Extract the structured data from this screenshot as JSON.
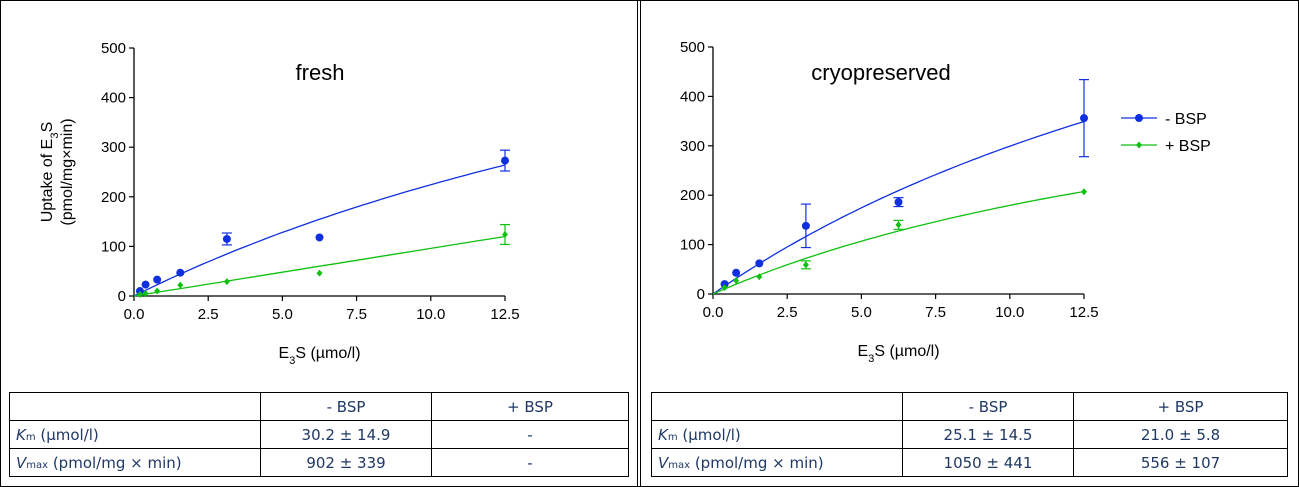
{
  "colors": {
    "minus_bsp": "#1030e0",
    "plus_bsp": "#10c010",
    "table_text": "#1f3864"
  },
  "chart_data": [
    {
      "type": "scatter",
      "title": "fresh",
      "xlabel": "E3S (µmo/l)",
      "ylabel": "Uptake of E3S (pmol/mg×min)",
      "xlim": [
        0,
        12.5
      ],
      "ylim": [
        0,
        500
      ],
      "xticks": [
        "0.0",
        "2.5",
        "5.0",
        "7.5",
        "10.0",
        "12.5"
      ],
      "yticks": [
        "0",
        "100",
        "200",
        "300",
        "400",
        "500"
      ],
      "legend": "none",
      "series": [
        {
          "name": "- BSP",
          "marker": "circle",
          "points": [
            {
              "x": 0.2,
              "y": 10,
              "err": 0
            },
            {
              "x": 0.39,
              "y": 23,
              "err": 0
            },
            {
              "x": 0.78,
              "y": 33,
              "err": 0
            },
            {
              "x": 1.56,
              "y": 47,
              "err": 0
            },
            {
              "x": 3.13,
              "y": 115,
              "err": 12
            },
            {
              "x": 6.25,
              "y": 118,
              "err": 0
            },
            {
              "x": 12.5,
              "y": 273,
              "err": 21
            }
          ],
          "fit": {
            "vmax": 902,
            "km": 30.2
          }
        },
        {
          "name": "+ BSP",
          "marker": "diamond",
          "points": [
            {
              "x": 0.2,
              "y": 3,
              "err": 0
            },
            {
              "x": 0.39,
              "y": 5,
              "err": 0
            },
            {
              "x": 0.78,
              "y": 10,
              "err": 0
            },
            {
              "x": 1.56,
              "y": 22,
              "err": 0
            },
            {
              "x": 3.13,
              "y": 29,
              "err": 0
            },
            {
              "x": 6.25,
              "y": 46,
              "err": 0
            },
            {
              "x": 12.5,
              "y": 124,
              "err": 20
            }
          ],
          "fit": {
            "linear_slope": 9.6
          }
        }
      ]
    },
    {
      "type": "scatter",
      "title": "cryopreserved",
      "xlabel": "E3S (µmo/l)",
      "ylabel": "",
      "xlim": [
        0,
        12.5
      ],
      "ylim": [
        0,
        500
      ],
      "xticks": [
        "0.0",
        "2.5",
        "5.0",
        "7.5",
        "10.0",
        "12.5"
      ],
      "yticks": [
        "0",
        "100",
        "200",
        "300",
        "400",
        "500"
      ],
      "legend": "right",
      "series": [
        {
          "name": "- BSP",
          "marker": "circle",
          "points": [
            {
              "x": 0.39,
              "y": 20,
              "err": 0
            },
            {
              "x": 0.78,
              "y": 43,
              "err": 0
            },
            {
              "x": 1.56,
              "y": 62,
              "err": 0
            },
            {
              "x": 3.13,
              "y": 138,
              "err": 44
            },
            {
              "x": 6.25,
              "y": 186,
              "err": 9
            },
            {
              "x": 12.5,
              "y": 356,
              "err": 78
            }
          ],
          "fit": {
            "vmax": 1050,
            "km": 25.1
          }
        },
        {
          "name": "+ BSP",
          "marker": "diamond",
          "points": [
            {
              "x": 0.39,
              "y": 13,
              "err": 0
            },
            {
              "x": 0.78,
              "y": 27,
              "err": 0
            },
            {
              "x": 1.56,
              "y": 35,
              "err": 0
            },
            {
              "x": 3.13,
              "y": 59,
              "err": 8
            },
            {
              "x": 6.25,
              "y": 140,
              "err": 9
            },
            {
              "x": 12.5,
              "y": 207,
              "err": 0
            }
          ],
          "fit": {
            "vmax": 556,
            "km": 21.0
          }
        }
      ]
    }
  ],
  "tables": [
    {
      "headers": [
        "",
        "- BSP",
        "+ BSP"
      ],
      "rows": [
        {
          "sym": "K",
          "sub": "m",
          "unit": " (µmol/l)",
          "minus": "30.2 ± 14.9",
          "plus": "-"
        },
        {
          "sym": "V",
          "sub": "max",
          "unit": " (pmol/mg × min)",
          "minus": "902 ± 339",
          "plus": "-"
        }
      ]
    },
    {
      "headers": [
        "",
        "- BSP",
        "+ BSP"
      ],
      "rows": [
        {
          "sym": "K",
          "sub": "m",
          "unit": " (µmol/l)",
          "minus": "25.1 ± 14.5",
          "plus": "21.0 ± 5.8"
        },
        {
          "sym": "V",
          "sub": "max",
          "unit": " (pmol/mg × min)",
          "minus": "1050 ± 441",
          "plus": "556 ± 107"
        }
      ]
    }
  ]
}
